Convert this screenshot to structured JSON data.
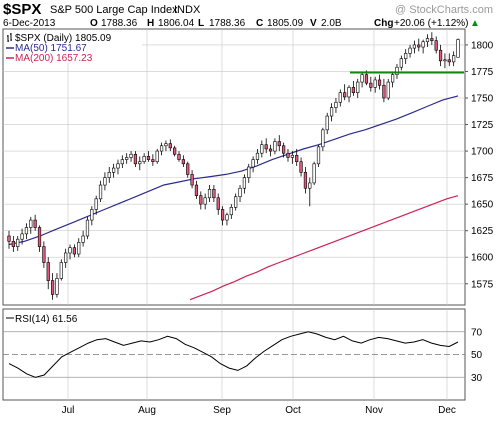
{
  "header": {
    "symbol": "$SPX",
    "name": "S&P 500 Large Cap Index",
    "exchange": "INDX",
    "watermark": "@ StockCharts.com",
    "date": "6-Dec-2013",
    "ohlc": [
      {
        "k": "O",
        "v": "1788.36"
      },
      {
        "k": "H",
        "v": "1806.04"
      },
      {
        "k": "L",
        "v": "1788.36"
      },
      {
        "k": "C",
        "v": "1805.09"
      },
      {
        "k": "V",
        "v": "2.0B"
      }
    ],
    "chg_label": "Chg",
    "chg_value": "+20.06 (+1.12%)",
    "chg_arrow": "▲"
  },
  "legend": [
    {
      "text": "$SPX (Daily) 1805.09",
      "color": "#000000"
    },
    {
      "text": "MA(50) 1751.67",
      "color": "#2b2b8f"
    },
    {
      "text": "MA(200) 1657.23",
      "color": "#cc2255"
    }
  ],
  "rsi_legend": "RSI(14) 61.56",
  "colors": {
    "up": "#ffffff",
    "down": "#e05a7a",
    "ma50": "#2b2b8f",
    "ma200": "#cc2255",
    "support": "#118811",
    "grid": "#c8c8c8",
    "axis": "#555555"
  },
  "chart_data": [
    {
      "type": "candlestick",
      "series_name": "$SPX (Daily)",
      "x_months": [
        "Jul",
        "Aug",
        "Sep",
        "Oct",
        "Nov",
        "Dec"
      ],
      "y_ticks": [
        1575,
        1600,
        1625,
        1650,
        1675,
        1700,
        1725,
        1750,
        1775,
        1800
      ],
      "ylim": [
        1555,
        1815
      ],
      "candles": [
        [
          1620,
          1625,
          1608,
          1615
        ],
        [
          1615,
          1620,
          1605,
          1610
        ],
        [
          1610,
          1620,
          1606,
          1617
        ],
        [
          1617,
          1627,
          1612,
          1622
        ],
        [
          1622,
          1632,
          1617,
          1628
        ],
        [
          1628,
          1638,
          1622,
          1635
        ],
        [
          1635,
          1640,
          1625,
          1628
        ],
        [
          1628,
          1630,
          1605,
          1610
        ],
        [
          1610,
          1615,
          1590,
          1595
        ],
        [
          1595,
          1600,
          1570,
          1578
        ],
        [
          1578,
          1585,
          1560,
          1565
        ],
        [
          1565,
          1585,
          1562,
          1580
        ],
        [
          1580,
          1598,
          1578,
          1595
        ],
        [
          1595,
          1608,
          1590,
          1604
        ],
        [
          1604,
          1612,
          1598,
          1609
        ],
        [
          1609,
          1612,
          1600,
          1603
        ],
        [
          1603,
          1618,
          1600,
          1614
        ],
        [
          1614,
          1625,
          1610,
          1620
        ],
        [
          1620,
          1638,
          1617,
          1635
        ],
        [
          1635,
          1648,
          1630,
          1645
        ],
        [
          1645,
          1658,
          1640,
          1655
        ],
        [
          1655,
          1672,
          1652,
          1668
        ],
        [
          1668,
          1680,
          1663,
          1675
        ],
        [
          1675,
          1685,
          1670,
          1680
        ],
        [
          1680,
          1688,
          1675,
          1684
        ],
        [
          1684,
          1692,
          1678,
          1688
        ],
        [
          1688,
          1696,
          1684,
          1692
        ],
        [
          1692,
          1698,
          1688,
          1694
        ],
        [
          1694,
          1700,
          1690,
          1697
        ],
        [
          1697,
          1700,
          1685,
          1688
        ],
        [
          1688,
          1695,
          1682,
          1690
        ],
        [
          1690,
          1698,
          1688,
          1695
        ],
        [
          1695,
          1700,
          1690,
          1692
        ],
        [
          1692,
          1697,
          1686,
          1690
        ],
        [
          1690,
          1702,
          1688,
          1700
        ],
        [
          1700,
          1708,
          1696,
          1705
        ],
        [
          1705,
          1710,
          1700,
          1707
        ],
        [
          1707,
          1711,
          1700,
          1703
        ],
        [
          1703,
          1705,
          1695,
          1697
        ],
        [
          1697,
          1700,
          1690,
          1692
        ],
        [
          1692,
          1696,
          1685,
          1688
        ],
        [
          1688,
          1690,
          1675,
          1678
        ],
        [
          1678,
          1682,
          1665,
          1668
        ],
        [
          1668,
          1672,
          1655,
          1658
        ],
        [
          1658,
          1662,
          1645,
          1650
        ],
        [
          1650,
          1660,
          1645,
          1656
        ],
        [
          1656,
          1668,
          1652,
          1664
        ],
        [
          1664,
          1668,
          1652,
          1656
        ],
        [
          1656,
          1660,
          1640,
          1645
        ],
        [
          1645,
          1648,
          1630,
          1635
        ],
        [
          1635,
          1642,
          1630,
          1640
        ],
        [
          1640,
          1650,
          1636,
          1647
        ],
        [
          1647,
          1660,
          1644,
          1657
        ],
        [
          1657,
          1668,
          1652,
          1665
        ],
        [
          1665,
          1678,
          1660,
          1675
        ],
        [
          1675,
          1688,
          1670,
          1685
        ],
        [
          1685,
          1695,
          1680,
          1692
        ],
        [
          1692,
          1702,
          1688,
          1698
        ],
        [
          1698,
          1710,
          1694,
          1706
        ],
        [
          1706,
          1712,
          1698,
          1702
        ],
        [
          1702,
          1706,
          1695,
          1700
        ],
        [
          1700,
          1712,
          1697,
          1709
        ],
        [
          1709,
          1715,
          1700,
          1705
        ],
        [
          1705,
          1708,
          1694,
          1698
        ],
        [
          1698,
          1702,
          1690,
          1694
        ],
        [
          1694,
          1700,
          1688,
          1696
        ],
        [
          1696,
          1702,
          1686,
          1690
        ],
        [
          1690,
          1694,
          1676,
          1680
        ],
        [
          1680,
          1685,
          1660,
          1665
        ],
        [
          1665,
          1675,
          1648,
          1670
        ],
        [
          1670,
          1690,
          1668,
          1688
        ],
        [
          1688,
          1706,
          1685,
          1704
        ],
        [
          1704,
          1722,
          1700,
          1720
        ],
        [
          1720,
          1736,
          1716,
          1733
        ],
        [
          1733,
          1745,
          1728,
          1741
        ],
        [
          1741,
          1750,
          1736,
          1746
        ],
        [
          1746,
          1758,
          1742,
          1755
        ],
        [
          1755,
          1763,
          1748,
          1751
        ],
        [
          1751,
          1762,
          1746,
          1760
        ],
        [
          1760,
          1766,
          1752,
          1755
        ],
        [
          1755,
          1768,
          1750,
          1765
        ],
        [
          1765,
          1775,
          1760,
          1772
        ],
        [
          1772,
          1776,
          1762,
          1764
        ],
        [
          1764,
          1770,
          1756,
          1760
        ],
        [
          1760,
          1770,
          1755,
          1767
        ],
        [
          1767,
          1772,
          1758,
          1762
        ],
        [
          1762,
          1768,
          1746,
          1750
        ],
        [
          1750,
          1768,
          1748,
          1765
        ],
        [
          1765,
          1775,
          1760,
          1772
        ],
        [
          1772,
          1782,
          1768,
          1779
        ],
        [
          1779,
          1790,
          1776,
          1787
        ],
        [
          1787,
          1796,
          1782,
          1792
        ],
        [
          1792,
          1800,
          1788,
          1797
        ],
        [
          1797,
          1804,
          1792,
          1800
        ],
        [
          1800,
          1806,
          1794,
          1798
        ],
        [
          1798,
          1805,
          1792,
          1803
        ],
        [
          1803,
          1810,
          1798,
          1806
        ],
        [
          1806,
          1812,
          1800,
          1804
        ],
        [
          1804,
          1808,
          1792,
          1795
        ],
        [
          1795,
          1800,
          1780,
          1785
        ],
        [
          1785,
          1792,
          1778,
          1786
        ],
        [
          1786,
          1792,
          1780,
          1784
        ],
        [
          1784,
          1794,
          1780,
          1790
        ],
        [
          1788.36,
          1806.04,
          1788.36,
          1805.09
        ]
      ],
      "ma50": [
        1612,
        1615,
        1620,
        1626,
        1632,
        1638,
        1644,
        1650,
        1656,
        1662,
        1668,
        1671,
        1674,
        1676,
        1678,
        1681,
        1686,
        1692,
        1697,
        1702,
        1706,
        1711,
        1716,
        1720,
        1725,
        1730,
        1736,
        1742,
        1748,
        1752
      ],
      "ma200": [
        1560,
        1564,
        1568,
        1573,
        1577,
        1582,
        1586,
        1591,
        1595,
        1599,
        1603,
        1607,
        1611,
        1615,
        1619,
        1623,
        1627,
        1631,
        1635,
        1639,
        1643,
        1647,
        1651,
        1655,
        1658
      ],
      "support_level": 1774
    },
    {
      "type": "line",
      "series_name": "RSI(14)",
      "y_ticks": [
        30,
        50,
        70
      ],
      "ylim": [
        10,
        90
      ],
      "values": [
        42,
        38,
        33,
        30,
        32,
        40,
        48,
        52,
        56,
        60,
        63,
        64,
        61,
        58,
        60,
        62,
        61,
        63,
        66,
        64,
        59,
        56,
        52,
        48,
        42,
        38,
        36,
        40,
        47,
        53,
        58,
        63,
        66,
        68,
        70,
        68,
        65,
        63,
        66,
        62,
        60,
        63,
        65,
        64,
        62,
        60,
        61,
        63,
        60,
        58,
        57,
        61
      ]
    }
  ]
}
